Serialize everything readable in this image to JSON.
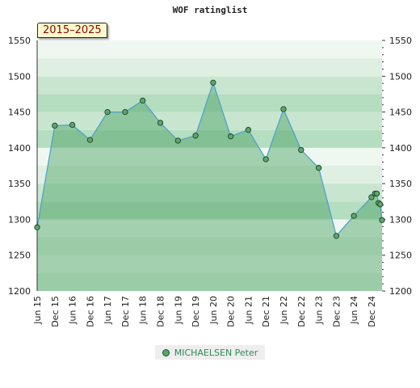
{
  "chart_data": {
    "type": "line",
    "title": "WOF ratinglist",
    "period_label": "2015–2025",
    "xlabel": "",
    "ylabel": "",
    "ylim": [
      1200,
      1550
    ],
    "yticks": [
      1200,
      1250,
      1300,
      1350,
      1400,
      1450,
      1500,
      1550
    ],
    "x_ticks": [
      "Jun 15",
      "Dec 15",
      "Jun 16",
      "Dec 16",
      "Jun 17",
      "Dec 17",
      "Jun 18",
      "Dec 18",
      "Jun 19",
      "Dec 19",
      "Jun 20",
      "Dec 20",
      "Jun 21",
      "Dec 21",
      "Jun 22",
      "Dec 22",
      "Jun 23",
      "Dec 23",
      "Jun 24",
      "Dec 24"
    ],
    "x_range": [
      0,
      19.6
    ],
    "grid": true,
    "legend_position": "bottom",
    "series": [
      {
        "name": "MICHAELSEN Peter",
        "color": "#5aa86a",
        "line_color": "#4a9fd0",
        "points": [
          {
            "x": 0.0,
            "y": 1289
          },
          {
            "x": 1.0,
            "y": 1431
          },
          {
            "x": 2.0,
            "y": 1432
          },
          {
            "x": 3.0,
            "y": 1411
          },
          {
            "x": 4.0,
            "y": 1450
          },
          {
            "x": 5.0,
            "y": 1450
          },
          {
            "x": 6.0,
            "y": 1466
          },
          {
            "x": 7.0,
            "y": 1435
          },
          {
            "x": 8.0,
            "y": 1410
          },
          {
            "x": 9.0,
            "y": 1417
          },
          {
            "x": 10.0,
            "y": 1491
          },
          {
            "x": 11.0,
            "y": 1416
          },
          {
            "x": 12.0,
            "y": 1425
          },
          {
            "x": 13.0,
            "y": 1384
          },
          {
            "x": 14.0,
            "y": 1454
          },
          {
            "x": 15.0,
            "y": 1397
          },
          {
            "x": 16.0,
            "y": 1372
          },
          {
            "x": 17.0,
            "y": 1277
          },
          {
            "x": 18.0,
            "y": 1305
          },
          {
            "x": 19.0,
            "y": 1331
          },
          {
            "x": 19.2,
            "y": 1336
          },
          {
            "x": 19.3,
            "y": 1336
          },
          {
            "x": 19.4,
            "y": 1323
          },
          {
            "x": 19.5,
            "y": 1321
          },
          {
            "x": 19.6,
            "y": 1299
          }
        ]
      }
    ]
  }
}
